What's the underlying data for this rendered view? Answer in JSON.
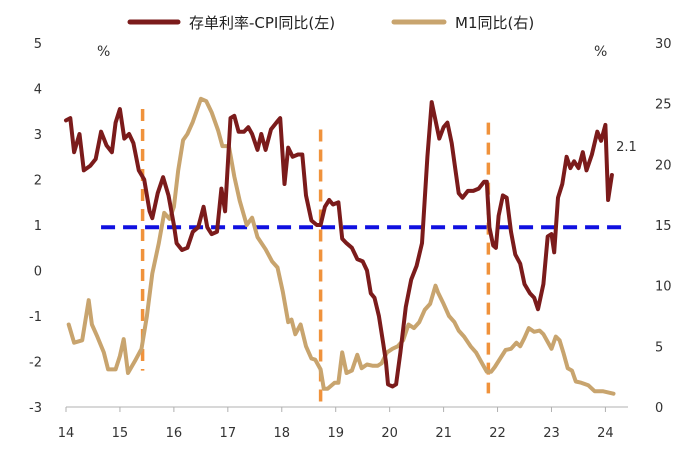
{
  "chart_data": {
    "type": "line",
    "legend": {
      "placement": "top"
    },
    "grid": false,
    "x_axis": {
      "range": [
        14.0,
        24.4
      ],
      "ticks": [
        14,
        15,
        16,
        17,
        18,
        19,
        20,
        21,
        22,
        23,
        24
      ]
    },
    "y_left": {
      "unit": "%",
      "range": [
        -3,
        5
      ],
      "ticks": [
        -3,
        -2,
        -1,
        0,
        1,
        2,
        3,
        4,
        5
      ]
    },
    "y_right": {
      "unit": "%",
      "range": [
        0,
        30
      ],
      "ticks": [
        0,
        5,
        10,
        15,
        20,
        25,
        30
      ]
    },
    "annotation": {
      "text": "2.1",
      "x": 24.05,
      "y": 2.1
    },
    "series": [
      {
        "name": "存单利率-CPI同比(左)",
        "axis": "left",
        "color": "#7b1b1b",
        "points": [
          [
            14.0,
            3.3
          ],
          [
            14.08,
            3.35
          ],
          [
            14.15,
            2.6
          ],
          [
            14.25,
            3.0
          ],
          [
            14.33,
            2.2
          ],
          [
            14.45,
            2.3
          ],
          [
            14.55,
            2.45
          ],
          [
            14.65,
            3.05
          ],
          [
            14.75,
            2.75
          ],
          [
            14.85,
            2.6
          ],
          [
            14.92,
            3.25
          ],
          [
            15.0,
            3.55
          ],
          [
            15.08,
            2.9
          ],
          [
            15.17,
            3.0
          ],
          [
            15.25,
            2.8
          ],
          [
            15.35,
            2.2
          ],
          [
            15.45,
            2.0
          ],
          [
            15.55,
            1.3
          ],
          [
            15.6,
            1.15
          ],
          [
            15.7,
            1.7
          ],
          [
            15.8,
            2.05
          ],
          [
            15.9,
            1.65
          ],
          [
            16.0,
            1.0
          ],
          [
            16.05,
            0.6
          ],
          [
            16.15,
            0.45
          ],
          [
            16.25,
            0.5
          ],
          [
            16.35,
            0.85
          ],
          [
            16.45,
            0.95
          ],
          [
            16.55,
            1.4
          ],
          [
            16.62,
            0.95
          ],
          [
            16.7,
            0.8
          ],
          [
            16.8,
            0.85
          ],
          [
            16.88,
            1.8
          ],
          [
            16.95,
            1.3
          ],
          [
            17.05,
            3.35
          ],
          [
            17.12,
            3.4
          ],
          [
            17.2,
            3.05
          ],
          [
            17.3,
            3.05
          ],
          [
            17.38,
            3.15
          ],
          [
            17.45,
            3.0
          ],
          [
            17.55,
            2.65
          ],
          [
            17.62,
            3.0
          ],
          [
            17.7,
            2.65
          ],
          [
            17.8,
            3.1
          ],
          [
            17.9,
            3.25
          ],
          [
            17.97,
            3.35
          ],
          [
            18.05,
            1.9
          ],
          [
            18.12,
            2.7
          ],
          [
            18.2,
            2.5
          ],
          [
            18.3,
            2.55
          ],
          [
            18.38,
            2.55
          ],
          [
            18.45,
            1.65
          ],
          [
            18.55,
            1.1
          ],
          [
            18.65,
            1.0
          ],
          [
            18.72,
            1.0
          ],
          [
            18.8,
            1.4
          ],
          [
            18.88,
            1.55
          ],
          [
            18.95,
            1.45
          ],
          [
            19.05,
            1.5
          ],
          [
            19.12,
            0.7
          ],
          [
            19.2,
            0.6
          ],
          [
            19.3,
            0.5
          ],
          [
            19.4,
            0.25
          ],
          [
            19.5,
            0.2
          ],
          [
            19.58,
            0.0
          ],
          [
            19.65,
            -0.5
          ],
          [
            19.72,
            -0.6
          ],
          [
            19.8,
            -1.0
          ],
          [
            19.88,
            -1.6
          ],
          [
            19.93,
            -2.0
          ],
          [
            19.97,
            -2.5
          ],
          [
            20.05,
            -2.55
          ],
          [
            20.12,
            -2.5
          ],
          [
            20.2,
            -1.8
          ],
          [
            20.3,
            -0.8
          ],
          [
            20.4,
            -0.2
          ],
          [
            20.5,
            0.1
          ],
          [
            20.6,
            0.6
          ],
          [
            20.7,
            2.5
          ],
          [
            20.78,
            3.7
          ],
          [
            20.85,
            3.3
          ],
          [
            20.92,
            2.9
          ],
          [
            21.0,
            3.15
          ],
          [
            21.07,
            3.25
          ],
          [
            21.15,
            2.8
          ],
          [
            21.22,
            2.2
          ],
          [
            21.28,
            1.7
          ],
          [
            21.35,
            1.6
          ],
          [
            21.45,
            1.75
          ],
          [
            21.55,
            1.75
          ],
          [
            21.65,
            1.8
          ],
          [
            21.75,
            1.95
          ],
          [
            21.8,
            1.95
          ],
          [
            21.85,
            0.95
          ],
          [
            21.92,
            0.55
          ],
          [
            21.97,
            0.5
          ],
          [
            22.02,
            1.2
          ],
          [
            22.1,
            1.65
          ],
          [
            22.17,
            1.6
          ],
          [
            22.25,
            0.85
          ],
          [
            22.33,
            0.35
          ],
          [
            22.42,
            0.15
          ],
          [
            22.5,
            -0.3
          ],
          [
            22.6,
            -0.5
          ],
          [
            22.68,
            -0.6
          ],
          [
            22.75,
            -0.85
          ],
          [
            22.85,
            -0.3
          ],
          [
            22.93,
            0.75
          ],
          [
            23.0,
            0.8
          ],
          [
            23.05,
            0.4
          ],
          [
            23.12,
            1.6
          ],
          [
            23.2,
            1.9
          ],
          [
            23.28,
            2.5
          ],
          [
            23.35,
            2.25
          ],
          [
            23.42,
            2.4
          ],
          [
            23.5,
            2.25
          ],
          [
            23.58,
            2.6
          ],
          [
            23.65,
            2.2
          ],
          [
            23.75,
            2.55
          ],
          [
            23.85,
            3.05
          ],
          [
            23.92,
            2.85
          ],
          [
            24.0,
            3.2
          ],
          [
            24.05,
            1.55
          ],
          [
            24.12,
            2.1
          ]
        ]
      },
      {
        "name": "M1同比(右)",
        "axis": "right",
        "color": "#c8a46e",
        "points": [
          [
            14.05,
            6.8
          ],
          [
            14.15,
            5.3
          ],
          [
            14.3,
            5.5
          ],
          [
            14.42,
            8.8
          ],
          [
            14.48,
            6.8
          ],
          [
            14.58,
            5.8
          ],
          [
            14.7,
            4.5
          ],
          [
            14.78,
            3.1
          ],
          [
            14.92,
            3.1
          ],
          [
            15.0,
            4.2
          ],
          [
            15.07,
            5.6
          ],
          [
            15.15,
            2.8
          ],
          [
            15.28,
            3.8
          ],
          [
            15.4,
            4.8
          ],
          [
            15.5,
            7.5
          ],
          [
            15.6,
            11.0
          ],
          [
            15.72,
            13.5
          ],
          [
            15.82,
            16.0
          ],
          [
            15.92,
            15.5
          ],
          [
            16.0,
            16.5
          ],
          [
            16.08,
            19.5
          ],
          [
            16.17,
            22.0
          ],
          [
            16.25,
            22.5
          ],
          [
            16.35,
            23.5
          ],
          [
            16.5,
            25.4
          ],
          [
            16.6,
            25.2
          ],
          [
            16.7,
            24.3
          ],
          [
            16.82,
            22.8
          ],
          [
            16.9,
            21.5
          ],
          [
            17.02,
            21.5
          ],
          [
            17.12,
            19.0
          ],
          [
            17.22,
            17.0
          ],
          [
            17.35,
            15.0
          ],
          [
            17.45,
            15.6
          ],
          [
            17.55,
            14.0
          ],
          [
            17.7,
            13.0
          ],
          [
            17.82,
            12.0
          ],
          [
            17.92,
            11.5
          ],
          [
            18.02,
            9.5
          ],
          [
            18.12,
            7.0
          ],
          [
            18.18,
            7.2
          ],
          [
            18.25,
            6.0
          ],
          [
            18.35,
            6.8
          ],
          [
            18.45,
            5.0
          ],
          [
            18.55,
            4.0
          ],
          [
            18.62,
            3.9
          ],
          [
            18.72,
            3.1
          ],
          [
            18.78,
            1.5
          ],
          [
            18.85,
            1.5
          ],
          [
            18.98,
            2.0
          ],
          [
            19.05,
            2.0
          ],
          [
            19.12,
            4.5
          ],
          [
            19.2,
            2.8
          ],
          [
            19.3,
            3.0
          ],
          [
            19.4,
            4.3
          ],
          [
            19.48,
            3.2
          ],
          [
            19.58,
            3.5
          ],
          [
            19.68,
            3.4
          ],
          [
            19.78,
            3.4
          ],
          [
            19.85,
            3.6
          ],
          [
            19.95,
            4.5
          ],
          [
            20.05,
            4.8
          ],
          [
            20.15,
            5.0
          ],
          [
            20.25,
            5.5
          ],
          [
            20.35,
            6.8
          ],
          [
            20.45,
            6.5
          ],
          [
            20.55,
            7.0
          ],
          [
            20.65,
            8.0
          ],
          [
            20.75,
            8.5
          ],
          [
            20.85,
            10.0
          ],
          [
            20.9,
            9.4
          ],
          [
            21.0,
            8.5
          ],
          [
            21.1,
            7.5
          ],
          [
            21.2,
            7.0
          ],
          [
            21.28,
            6.3
          ],
          [
            21.38,
            5.8
          ],
          [
            21.5,
            5.0
          ],
          [
            21.6,
            4.5
          ],
          [
            21.7,
            3.7
          ],
          [
            21.8,
            2.9
          ],
          [
            21.88,
            2.9
          ],
          [
            21.95,
            3.3
          ],
          [
            22.05,
            4.0
          ],
          [
            22.15,
            4.7
          ],
          [
            22.25,
            4.8
          ],
          [
            22.35,
            5.3
          ],
          [
            22.42,
            5.0
          ],
          [
            22.5,
            5.7
          ],
          [
            22.58,
            6.5
          ],
          [
            22.68,
            6.2
          ],
          [
            22.78,
            6.3
          ],
          [
            22.85,
            6.0
          ],
          [
            22.95,
            5.2
          ],
          [
            23.0,
            4.8
          ],
          [
            23.08,
            5.8
          ],
          [
            23.15,
            5.5
          ],
          [
            23.22,
            4.5
          ],
          [
            23.3,
            3.2
          ],
          [
            23.38,
            3.0
          ],
          [
            23.45,
            2.1
          ],
          [
            23.55,
            2.0
          ],
          [
            23.68,
            1.8
          ],
          [
            23.8,
            1.3
          ],
          [
            23.95,
            1.3
          ],
          [
            24.05,
            1.2
          ],
          [
            24.15,
            1.1
          ]
        ]
      }
    ],
    "reference_lines": [
      {
        "orientation": "horizontal",
        "axis": "left",
        "value": 0.95,
        "x_from": 14.65,
        "x_to": 24.4,
        "color": "#1010e0",
        "style": "dashed"
      },
      {
        "orientation": "vertical",
        "x": 15.42,
        "y_from": -2.2,
        "y_to": 3.55,
        "color": "#f0923b",
        "style": "dashed"
      },
      {
        "orientation": "vertical",
        "x": 18.72,
        "y_from": -3.0,
        "y_to": 3.1,
        "color": "#f0923b",
        "style": "dashed"
      },
      {
        "orientation": "vertical",
        "x": 21.83,
        "y_from": -2.7,
        "y_to": 3.25,
        "color": "#f0923b",
        "style": "dashed"
      }
    ]
  }
}
